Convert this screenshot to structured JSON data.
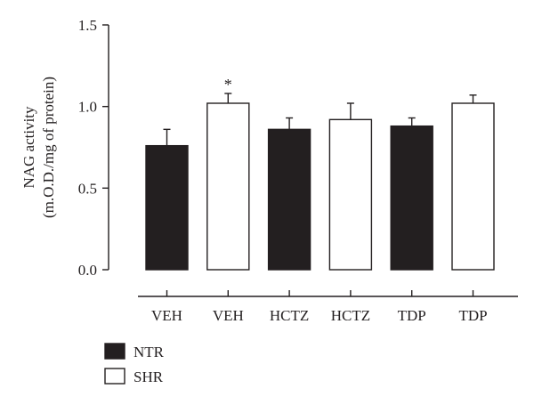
{
  "chart_data": {
    "type": "bar",
    "title": "",
    "ylabel_lines": [
      "NAG activity",
      "(m.O.D./mg of protein)"
    ],
    "xlabel": "",
    "categories": [
      "VEH",
      "VEH",
      "HCTZ",
      "HCTZ",
      "TDP",
      "TDP"
    ],
    "groups": [
      "NTR",
      "SHR",
      "NTR",
      "SHR",
      "NTR",
      "SHR"
    ],
    "values": [
      0.76,
      1.02,
      0.86,
      0.92,
      0.88,
      1.02
    ],
    "errors": [
      0.1,
      0.06,
      0.07,
      0.1,
      0.05,
      0.05
    ],
    "annotations": [
      "",
      "*",
      "",
      "",
      "",
      ""
    ],
    "ylim": [
      0,
      1.5
    ],
    "yticks": [
      0.0,
      0.5,
      1.0,
      1.5
    ],
    "ytick_labels": [
      "0.0",
      "0.5",
      "1.0",
      "1.5"
    ],
    "grid": false,
    "legend_position": "bottom-left",
    "legend": [
      {
        "name": "NTR",
        "fill": "#231f20"
      },
      {
        "name": "SHR",
        "fill": "#ffffff"
      }
    ],
    "colors": {
      "ink": "#231f20",
      "ntr": "#231f20",
      "shr": "#ffffff"
    }
  }
}
